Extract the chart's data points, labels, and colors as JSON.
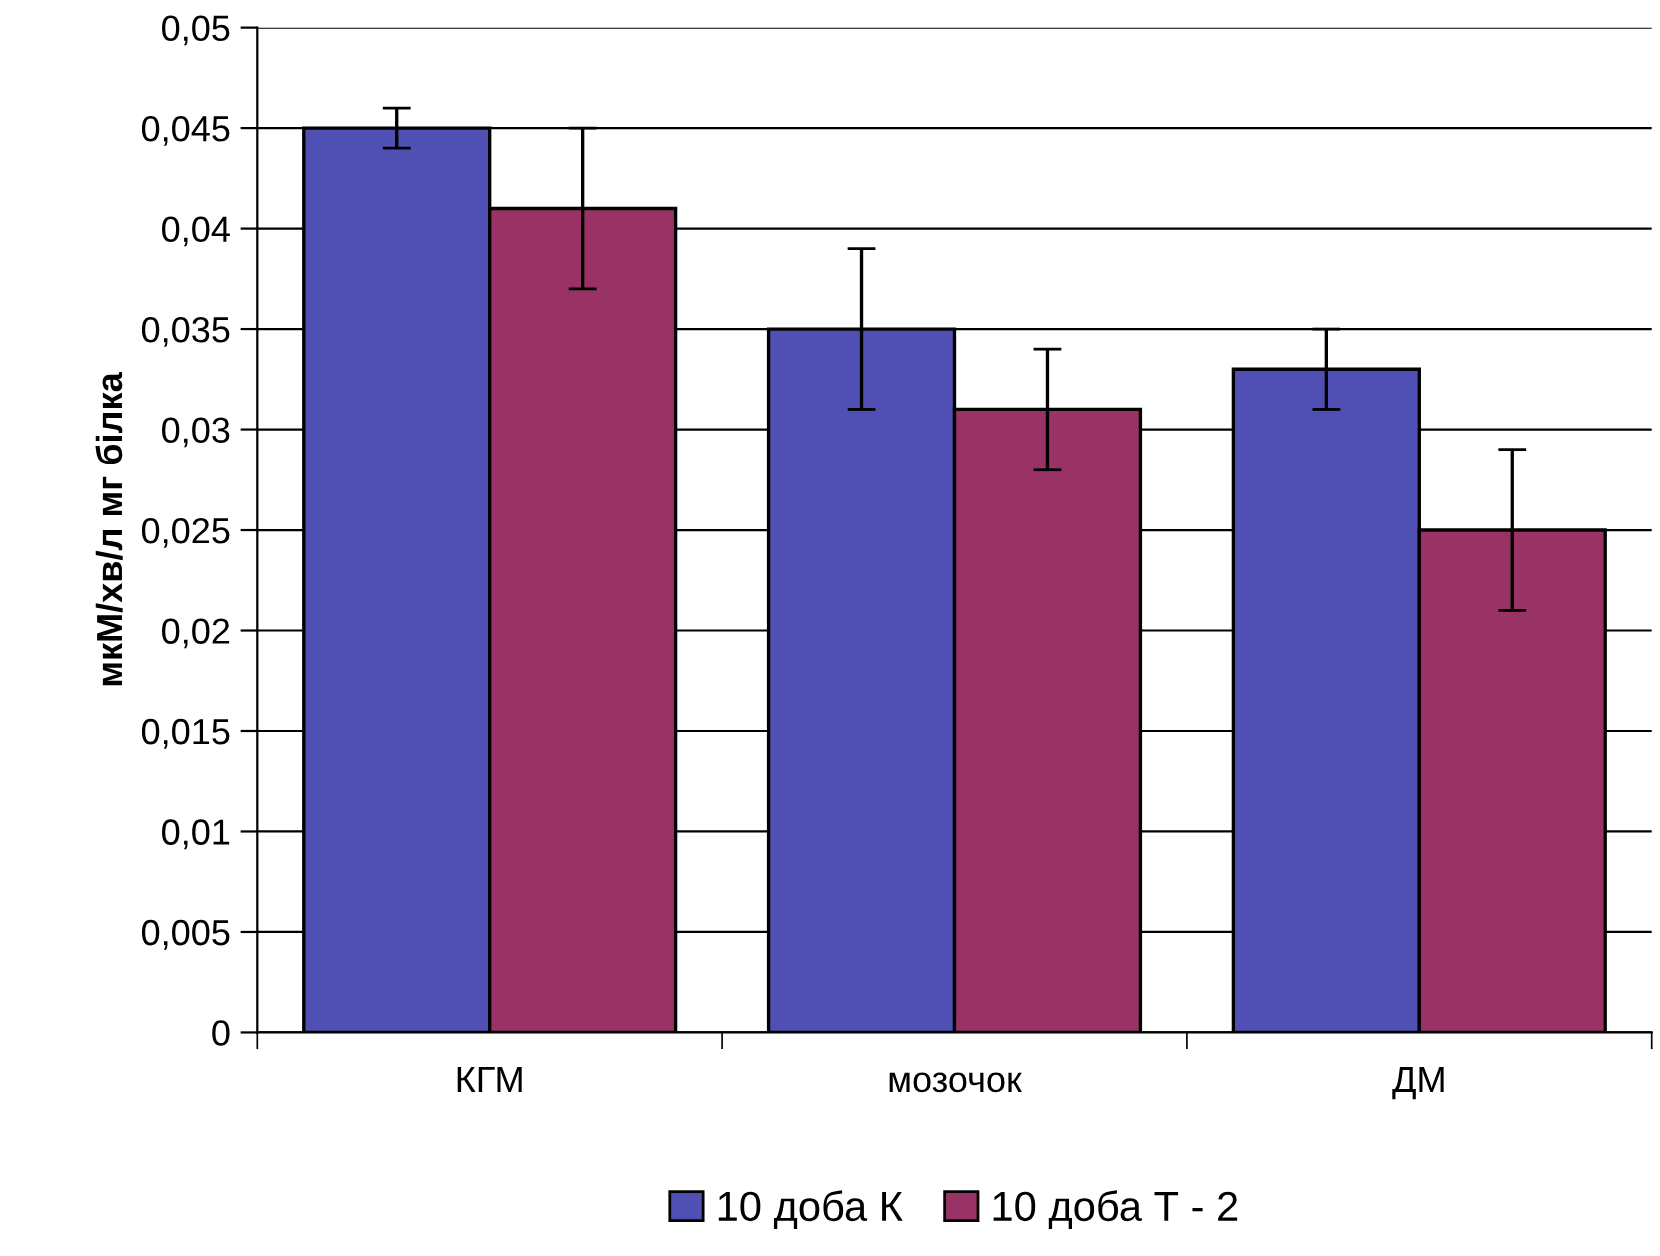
{
  "chart_data": {
    "type": "bar",
    "ylabel": "мкМ/хв/л мг білка",
    "categories": [
      "КГМ",
      "мозочок",
      "ДМ"
    ],
    "series": [
      {
        "name": "10 доба К",
        "color": "#5050b4",
        "values": [
          0.045,
          0.035,
          0.033
        ],
        "errors": [
          0.001,
          0.004,
          0.002
        ]
      },
      {
        "name": "10 доба Т - 2",
        "color": "#993366",
        "values": [
          0.041,
          0.031,
          0.025
        ],
        "errors": [
          0.004,
          0.003,
          0.004
        ]
      }
    ],
    "ylim": [
      0,
      0.05
    ],
    "yticks": [
      0,
      {
        "value": 0.005,
        "label": "0,005"
      },
      {
        "value": 0.01,
        "label": "0,01"
      },
      {
        "value": 0.015,
        "label": "0,015"
      },
      {
        "value": 0.02,
        "label": "0,02"
      },
      {
        "value": 0.025,
        "label": "0,025"
      },
      {
        "value": 0.03,
        "label": "0,03"
      },
      {
        "value": 0.035,
        "label": "0,035"
      },
      {
        "value": 0.04,
        "label": "0,04"
      },
      {
        "value": 0.045,
        "label": "0,045"
      },
      {
        "value": 0.05,
        "label": "0,05"
      }
    ],
    "grid": "y",
    "legend": "bottom"
  }
}
